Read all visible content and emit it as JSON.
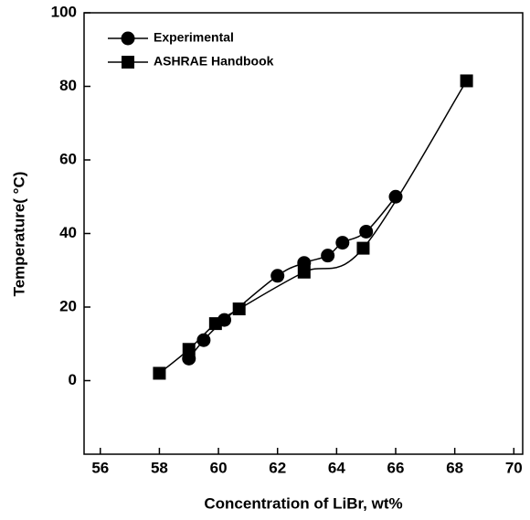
{
  "chart_data": {
    "type": "line",
    "xlabel": "Concentration of LiBr, wt%",
    "ylabel": "Temperature( °C)",
    "xlim": [
      55.45,
      70.3
    ],
    "xticks": [
      56,
      58,
      60,
      62,
      64,
      66,
      68,
      70
    ],
    "ylim": [
      -20,
      100
    ],
    "yticks": [
      0,
      20,
      40,
      60,
      80,
      100
    ],
    "legend": "upper left",
    "series": [
      {
        "name": "Experimental",
        "marker": "circle",
        "color": "#000000",
        "x": [
          59.0,
          59.5,
          60.2,
          62.0,
          62.9,
          63.7,
          64.2,
          65.0,
          66.0
        ],
        "values": [
          6,
          11,
          16.5,
          28.5,
          32,
          34,
          37.5,
          40.5,
          50
        ]
      },
      {
        "name": "ASHRAE Handbook",
        "marker": "square",
        "color": "#000000",
        "x": [
          58.0,
          59.0,
          59.9,
          60.7,
          62.9,
          64.9,
          68.4
        ],
        "values": [
          2,
          8.5,
          15.5,
          19.5,
          29.5,
          36,
          81.5
        ]
      }
    ]
  }
}
